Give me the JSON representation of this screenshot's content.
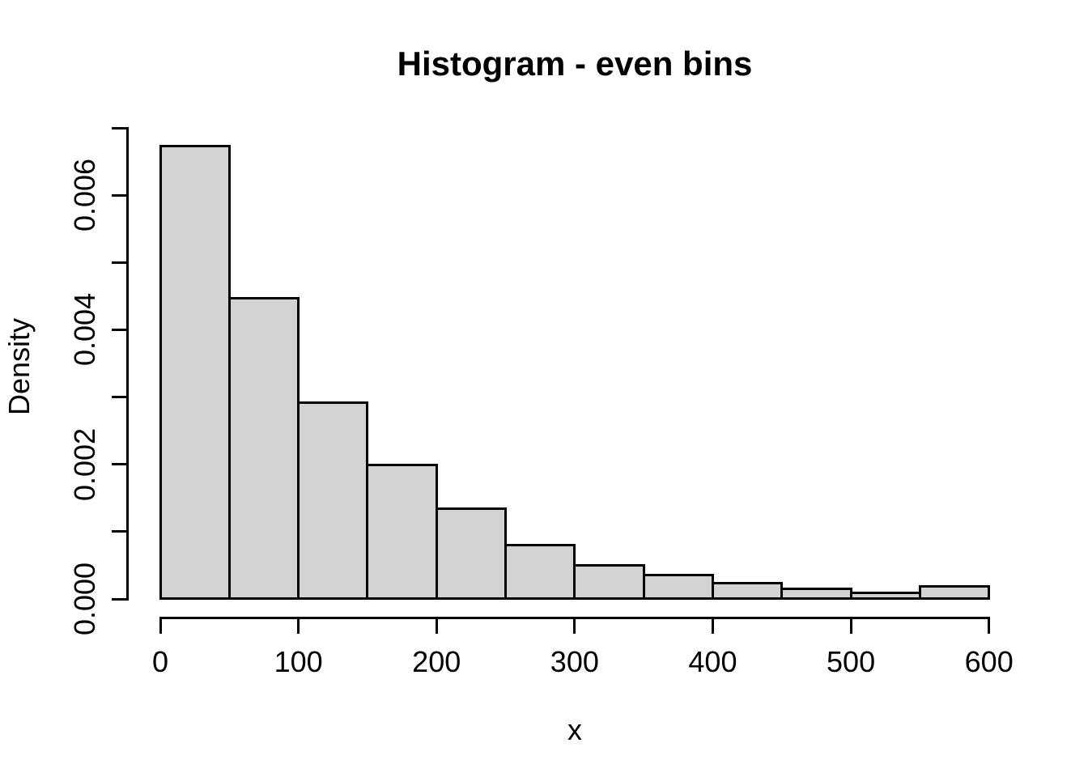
{
  "title": "Histogram - even bins",
  "chart_data": {
    "type": "bar",
    "subtype": "histogram",
    "title": "Histogram - even bins",
    "xlabel": "x",
    "ylabel": "Density",
    "xlim": [
      0,
      600
    ],
    "ylim": [
      0,
      0.007
    ],
    "grid": false,
    "legend": "none",
    "bin_width": 50,
    "bin_edges": [
      0,
      50,
      100,
      150,
      200,
      250,
      300,
      350,
      400,
      450,
      500,
      550,
      600
    ],
    "densities": [
      0.00673,
      0.00447,
      0.00292,
      0.00199,
      0.00134,
      0.0008,
      0.0005,
      0.00035,
      0.00024,
      0.00015,
      9e-05,
      0.00019
    ],
    "x_ticks": [
      {
        "value": 0,
        "label": "0"
      },
      {
        "value": 100,
        "label": "100"
      },
      {
        "value": 200,
        "label": "200"
      },
      {
        "value": 300,
        "label": "300"
      },
      {
        "value": 400,
        "label": "400"
      },
      {
        "value": 500,
        "label": "500"
      },
      {
        "value": 600,
        "label": "600"
      }
    ],
    "y_ticks": [
      {
        "value": 0.0,
        "label": "0.000"
      },
      {
        "value": 0.001,
        "label": ""
      },
      {
        "value": 0.002,
        "label": "0.002"
      },
      {
        "value": 0.003,
        "label": ""
      },
      {
        "value": 0.004,
        "label": "0.004"
      },
      {
        "value": 0.005,
        "label": ""
      },
      {
        "value": 0.006,
        "label": "0.006"
      },
      {
        "value": 0.007,
        "label": ""
      }
    ],
    "colors": {
      "bar_fill": "#d3d3d3",
      "bar_border": "#000000",
      "axis": "#000000",
      "text": "#000000",
      "background": "#ffffff"
    }
  }
}
